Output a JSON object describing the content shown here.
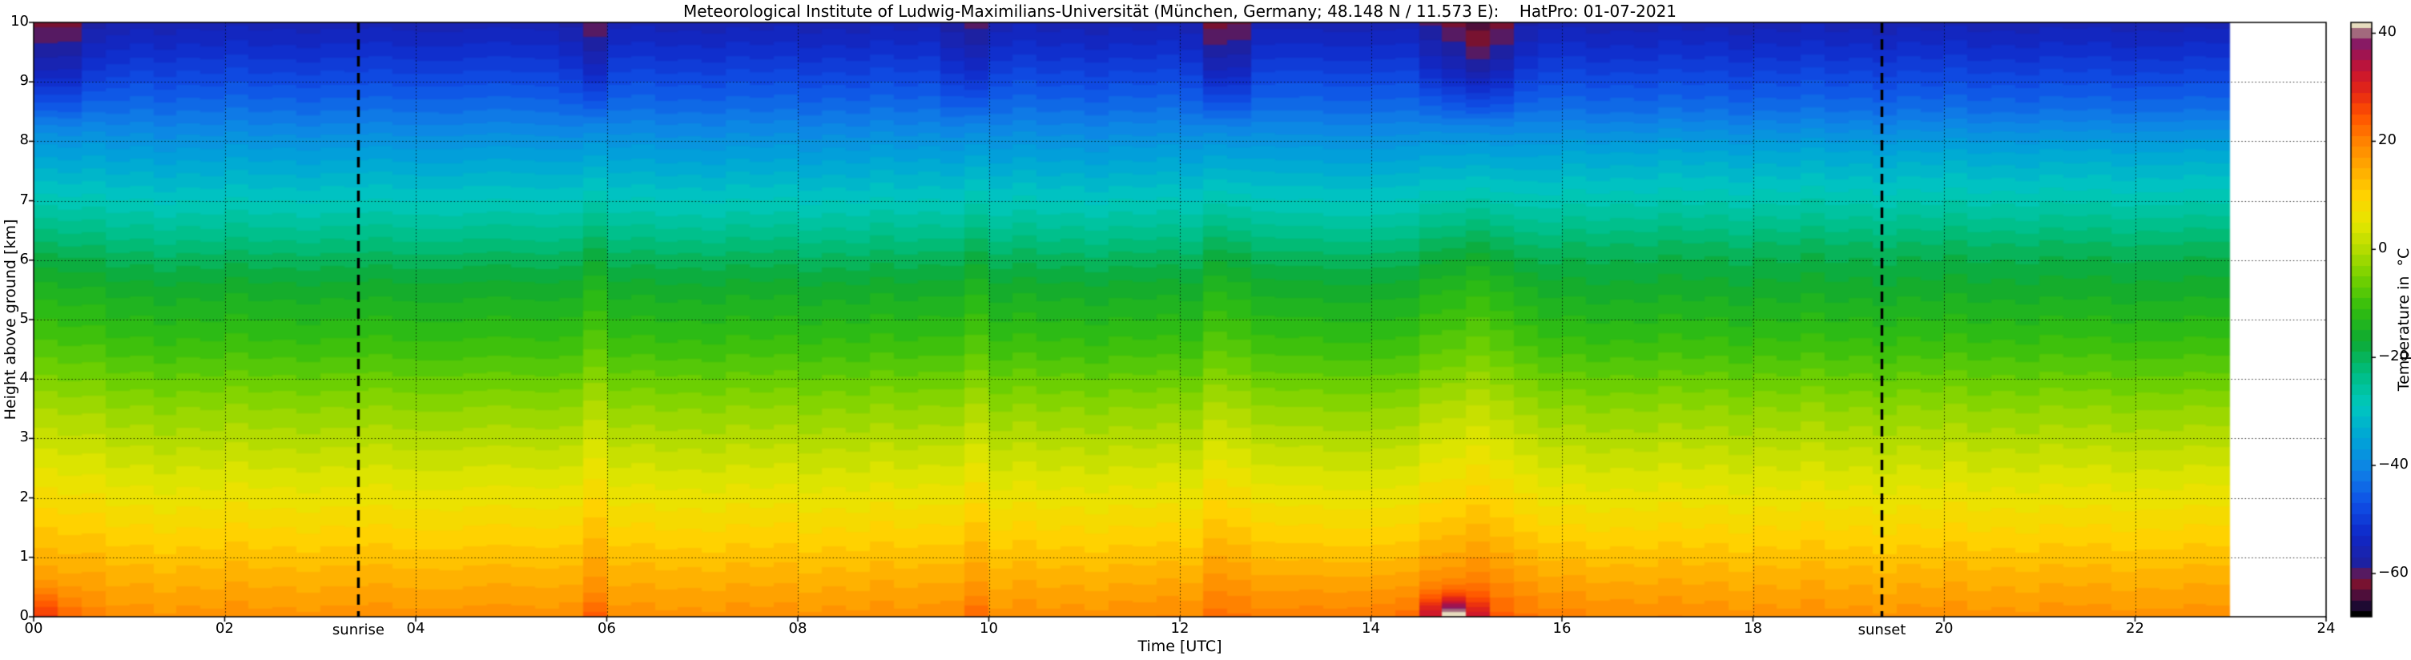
{
  "chart_data": {
    "type": "heatmap",
    "title": "Meteorological Institute of Ludwig-Maximilians-Universität (München, Germany; 48.148 N / 11.573 E):    HatPro: 01-07-2021",
    "xlabel": "Time [UTC]",
    "ylabel": "Height above ground [km]",
    "x_range": [
      0,
      24
    ],
    "data_x_max": 23,
    "y_range": [
      0,
      10
    ],
    "x_ticks": {
      "values": [
        0,
        2,
        4,
        6,
        8,
        10,
        12,
        14,
        16,
        18,
        20,
        22,
        24
      ],
      "labels": [
        "00",
        "02",
        "04",
        "06",
        "08",
        "10",
        "12",
        "14",
        "16",
        "18",
        "20",
        "22",
        "24"
      ]
    },
    "y_ticks": {
      "values": [
        0,
        1,
        2,
        3,
        4,
        5,
        6,
        7,
        8,
        9,
        10
      ],
      "labels": [
        "0",
        "1",
        "2",
        "3",
        "4",
        "5",
        "6",
        "7",
        "8",
        "9",
        "10"
      ]
    },
    "grid": {
      "x_step": 2,
      "y_step": 1,
      "style": "dotted"
    },
    "annotations": {
      "sunrise": {
        "time": 3.4,
        "label": "sunrise",
        "line_style": "dashed-black"
      },
      "sunset": {
        "time": 19.35,
        "label": "sunset",
        "line_style": "dashed-black"
      }
    },
    "colorbar": {
      "label": "Temperature in  °C",
      "tick_values": [
        40,
        20,
        0,
        -20,
        -40,
        -60
      ],
      "tick_labels": [
        "40",
        "20",
        "0",
        "−20",
        "−40",
        "−60"
      ],
      "domain": [
        -68,
        42
      ],
      "quantize_step": 2,
      "stops": [
        [
          -68,
          "#000000"
        ],
        [
          -66,
          "#1e0a32"
        ],
        [
          -63.5,
          "#5a0f3c"
        ],
        [
          -61,
          "#8c1428"
        ],
        [
          -59,
          "#20209b"
        ],
        [
          -53,
          "#1028c8"
        ],
        [
          -47,
          "#0f50e6"
        ],
        [
          -41,
          "#0f82e6"
        ],
        [
          -35,
          "#00a5d7"
        ],
        [
          -29,
          "#00c8be"
        ],
        [
          -23,
          "#00be82"
        ],
        [
          -17,
          "#0faa32"
        ],
        [
          -11,
          "#32be0f"
        ],
        [
          -5,
          "#78d200"
        ],
        [
          0,
          "#b4dc00"
        ],
        [
          5,
          "#e6e600"
        ],
        [
          10,
          "#ffd200"
        ],
        [
          15,
          "#ffaa00"
        ],
        [
          20,
          "#ff8200"
        ],
        [
          25,
          "#ff5000"
        ],
        [
          29,
          "#e62814"
        ],
        [
          33,
          "#c81432"
        ],
        [
          36,
          "#a01450"
        ],
        [
          39,
          "#7d1e6e"
        ],
        [
          41,
          "#c8b48c"
        ],
        [
          42,
          "#e6dcbe"
        ]
      ]
    },
    "field": {
      "description": "Temperature (°C) vs time (UTC h) and height above ground (km); base vertical profile plus convective plume anomalies and surface hot spots as seen in the image.",
      "time_step_h": 0.25,
      "profile_heights_km": [
        0,
        0.5,
        1,
        1.5,
        2,
        2.5,
        3,
        3.5,
        4,
        4.5,
        5,
        5.5,
        6,
        6.5,
        7,
        7.5,
        8,
        8.5,
        9,
        9.5,
        10
      ],
      "profile_temps_c": [
        18,
        15,
        12,
        9,
        6,
        3,
        0,
        -3,
        -6.5,
        -10,
        -13,
        -16,
        -20,
        -24.5,
        -29,
        -33.5,
        -38,
        -43,
        -47.5,
        -52,
        -56
      ],
      "plumes": [
        {
          "t": 0.2,
          "w": 0.45,
          "warm_low": 2,
          "cold_top": -6
        },
        {
          "t": 5.8,
          "w": 0.13,
          "warm_low": 4,
          "cold_top": -7
        },
        {
          "t": 9.78,
          "w": 0.13,
          "warm_low": 4,
          "cold_top": -7
        },
        {
          "t": 12.35,
          "w": 0.13,
          "warm_low": 3,
          "cold_top": -6
        },
        {
          "t": 12.65,
          "w": 0.13,
          "warm_low": 2.5,
          "cold_top": -5
        },
        {
          "t": 14.75,
          "w": 0.16,
          "warm_low": 4,
          "cold_top": -7
        },
        {
          "t": 15.1,
          "w": 0.18,
          "warm_low": 4.5,
          "cold_top": -8
        },
        {
          "t": 15.45,
          "w": 0.16,
          "warm_low": 3.5,
          "cold_top": -6
        }
      ],
      "surface_spots": [
        {
          "t": 0.0,
          "tw": 0.4,
          "zw": 0.4,
          "amp": 8
        },
        {
          "t": 5.8,
          "tw": 0.12,
          "zw": 0.3,
          "amp": 4
        },
        {
          "t": 9.78,
          "tw": 0.12,
          "zw": 0.3,
          "amp": 4
        },
        {
          "t": 14.85,
          "tw": 0.28,
          "zw": 0.33,
          "amp": 19
        }
      ],
      "afternoon_surface_warming": {
        "t_center": 14.5,
        "t_width": 2.2,
        "z_width": 0.9,
        "amp": 2.5
      },
      "upper_warm_band": {
        "t_start": 15.6,
        "z_low": 6,
        "z_high": 8,
        "amp": 1.5
      },
      "column_noise_amp": 0.7
    }
  }
}
